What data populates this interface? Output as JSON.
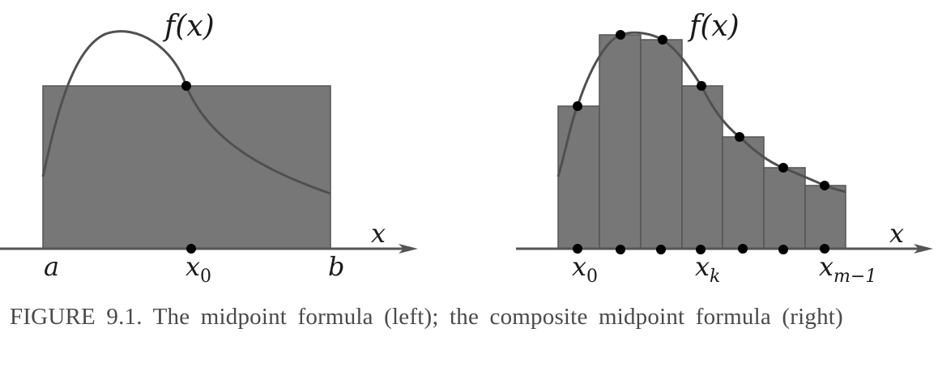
{
  "left_panel": {
    "function_label": "f(x)",
    "axis_label": "x",
    "a_label": "a",
    "b_label": "b",
    "x0_main": "x",
    "x0_sub": "0"
  },
  "right_panel": {
    "function_label": "f(x)",
    "axis_label": "x",
    "x0_main": "x",
    "x0_sub": "0",
    "xk_main": "x",
    "xk_sub": "k",
    "xm1_main": "x",
    "xm1_sub": "m−1",
    "num_rectangles": 7
  },
  "caption": "FIGURE 9.1. The midpoint formula (left); the composite midpoint formula (right)",
  "colors": {
    "rect_fill": "#777777",
    "rect_stroke": "#555555",
    "curve": "#505050",
    "axis": "#555555",
    "dot": "#000000"
  }
}
